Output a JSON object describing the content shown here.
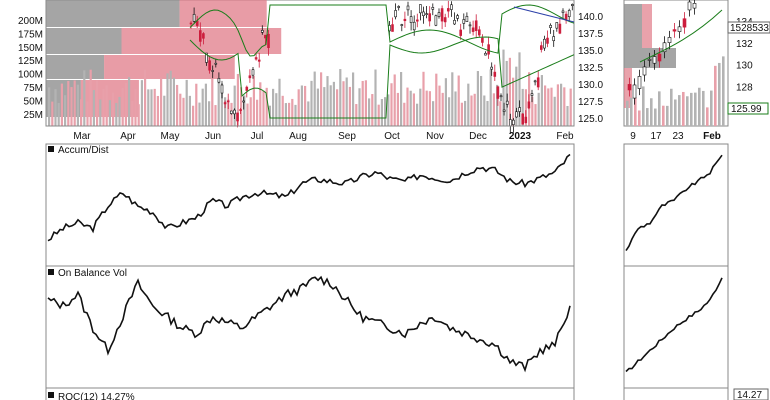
{
  "chart_data": [
    {
      "type": "candlestick",
      "panel": "main-price",
      "x_tick_labels": [
        "Mar",
        "Apr",
        "May",
        "Jun",
        "Jul",
        "Aug",
        "Sep",
        "Oct",
        "Nov",
        "Dec",
        "2023",
        "Jan",
        "Feb"
      ],
      "volume_axis_labels": [
        "200M",
        "175M",
        "150M",
        "125M",
        "100M",
        "75M",
        "50M",
        "25M"
      ],
      "price_axis_labels": [
        "140.0",
        "137.5",
        "135.0",
        "132.5",
        "130.0",
        "127.5",
        "125.0"
      ],
      "price_ylim": [
        124,
        142.5
      ],
      "volume_ylim": [
        0,
        240
      ],
      "price_path": [
        {
          "x": "May",
          "y": 141
        },
        {
          "x": "Jun",
          "y": 132
        },
        {
          "x": "Jun",
          "y": 126
        },
        {
          "x": "Jul",
          "y": 137
        },
        {
          "x": "Oct",
          "y": 140
        },
        {
          "x": "Nov",
          "y": 141
        },
        {
          "x": "Dec",
          "y": 138
        },
        {
          "x": "Dec",
          "y": 126
        },
        {
          "x": "2023",
          "y": 124.5
        },
        {
          "x": "Jan",
          "y": 136
        },
        {
          "x": "Feb",
          "y": 141
        }
      ],
      "colors": {
        "up": "#111111",
        "down": "#cc1d3c",
        "bollinger": "#1a7d1a",
        "ma": "#2b3fa8",
        "volume": "#b3b3b3",
        "volume_down": "#e8a0aa",
        "profile_grey": "#8f8f8f",
        "profile_red": "#e07b88"
      }
    },
    {
      "type": "candlestick",
      "panel": "inset-price",
      "x_tick_labels": [
        "9",
        "17",
        "23",
        "Feb"
      ],
      "price_axis_labels": [
        "134",
        "132",
        "130",
        "128"
      ],
      "last_price_label": "1528533",
      "current_value_label": "125.99",
      "price_ylim": [
        124.5,
        136
      ]
    },
    {
      "type": "line",
      "panel": "accum-dist",
      "title": "Accum/Dist",
      "y": [
        0.2,
        0.3,
        0.35,
        0.3,
        0.5,
        0.62,
        0.5,
        0.45,
        0.3,
        0.35,
        0.4,
        0.55,
        0.5,
        0.58,
        0.62,
        0.6,
        0.58,
        0.7,
        0.74,
        0.72,
        0.7,
        0.76,
        0.8,
        0.74,
        0.72,
        0.78,
        0.75,
        0.73,
        0.8,
        0.85,
        0.82,
        0.72,
        0.7,
        0.75,
        0.8,
        0.95
      ],
      "inset_y": [
        0.1,
        0.3,
        0.35,
        0.5,
        0.55,
        0.65,
        0.72,
        0.8,
        0.95
      ]
    },
    {
      "type": "line",
      "panel": "on-balance-vol",
      "title": "On Balance Vol",
      "y": [
        0.75,
        0.7,
        0.8,
        0.5,
        0.3,
        0.6,
        0.9,
        0.7,
        0.6,
        0.5,
        0.45,
        0.6,
        0.55,
        0.5,
        0.6,
        0.7,
        0.8,
        0.85,
        0.95,
        0.9,
        0.75,
        0.6,
        0.55,
        0.5,
        0.45,
        0.55,
        0.6,
        0.5,
        0.45,
        0.4,
        0.35,
        0.2,
        0.15,
        0.3,
        0.35,
        0.7
      ],
      "inset_y": [
        0.1,
        0.2,
        0.3,
        0.4,
        0.5,
        0.58,
        0.65,
        0.75,
        0.95
      ]
    },
    {
      "type": "line",
      "panel": "roc",
      "title": "ROC(12) 14.27%",
      "inset_value_label": "14.27"
    }
  ]
}
